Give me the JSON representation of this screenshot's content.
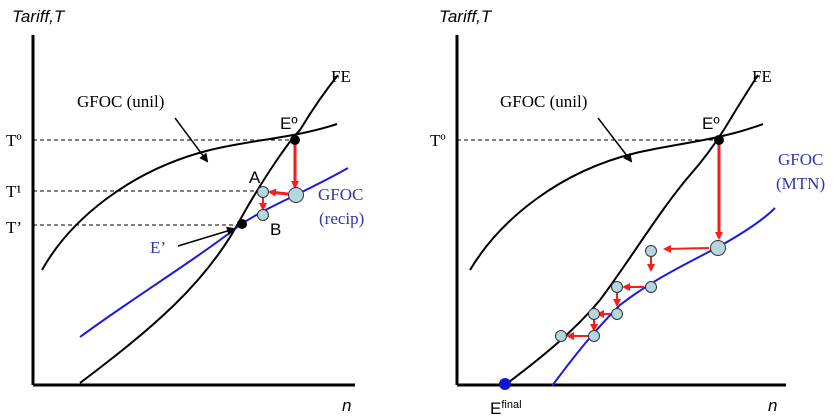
{
  "colors": {
    "curve": "#000000",
    "blue_curve": "#1a1ae6",
    "blue_label": "#3333aa",
    "arrow": "#ff1a1a",
    "marker_fill": "#b4d6e0",
    "point_black": "#000000",
    "point_blue": "#1515cc"
  },
  "left_panel": {
    "y_axis_label": "Tariff,T",
    "x_axis_label": "n",
    "fe_label": "FE",
    "gfoc_unil_label": "GFOC (unil)",
    "gfoc_recip_line1": "GFOC",
    "gfoc_recip_line2": "(recip)",
    "eo_label": "Eº",
    "e_prime_label": "E’",
    "a_label": "A",
    "b_label": "B",
    "t0_label": "Tº",
    "t1_label": "T¹",
    "t_prime_label": "T’"
  },
  "right_panel": {
    "y_axis_label": "Tariff,T",
    "x_axis_label": "n",
    "fe_label": "FE",
    "gfoc_unil_label": "GFOC (unil)",
    "gfoc_mtn_line1": "GFOC",
    "gfoc_mtn_line2": "(MTN)",
    "eo_label": "Eº",
    "t0_label": "Tº",
    "e_final_main": "E",
    "e_final_sup": "final"
  }
}
